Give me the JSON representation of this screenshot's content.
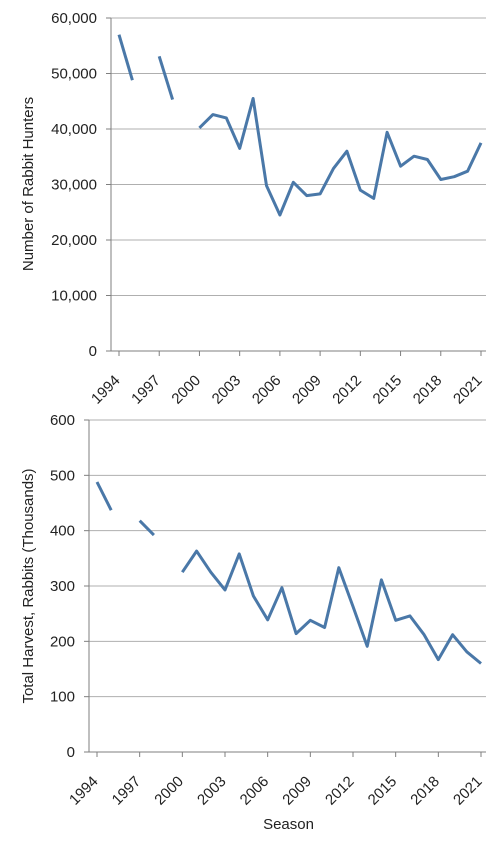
{
  "colors": {
    "series": "#4A78A8",
    "grid": "#AFAFAF",
    "axis": "#7F7F7F"
  },
  "chart_data": [
    {
      "type": "line",
      "title": "",
      "xlabel": "",
      "ylabel": "Number of Rabbit Hunters",
      "ylim": [
        0,
        60000
      ],
      "yticks": [
        0,
        10000,
        20000,
        30000,
        40000,
        50000,
        60000
      ],
      "ytick_labels": [
        "0",
        "10,000",
        "20,000",
        "30,000",
        "40,000",
        "50,000",
        "60,000"
      ],
      "xlim": [
        1994,
        2021
      ],
      "xtick_labels": [
        "1994",
        "1997",
        "2000",
        "2003",
        "2006",
        "2009",
        "2012",
        "2015",
        "2018",
        "2021"
      ],
      "grid": true,
      "series": [
        {
          "x": [
            1994,
            1995,
            1996,
            1997,
            1998,
            1999,
            2000,
            2001,
            2002,
            2003,
            2004,
            2005,
            2006,
            2007,
            2008,
            2009,
            2010,
            2011,
            2012,
            2013,
            2014,
            2015,
            2016,
            2017,
            2018,
            2019,
            2020,
            2021
          ],
          "values": [
            57000,
            48800,
            null,
            53100,
            45300,
            null,
            40200,
            42600,
            42000,
            36500,
            45500,
            29800,
            24500,
            30400,
            28000,
            28300,
            32900,
            36000,
            29000,
            27500,
            39400,
            33300,
            35100,
            34500,
            30900,
            31400,
            32400,
            37500
          ]
        }
      ]
    },
    {
      "type": "line",
      "title": "",
      "xlabel": "Season",
      "ylabel": "Total Harvest, Rabbits (Thousands)",
      "ylim": [
        0,
        600
      ],
      "yticks": [
        0,
        100,
        200,
        300,
        400,
        500,
        600
      ],
      "ytick_labels": [
        "0",
        "100",
        "200",
        "300",
        "400",
        "500",
        "600"
      ],
      "xlim": [
        1994,
        2021
      ],
      "xtick_labels": [
        "1994",
        "1997",
        "2000",
        "2003",
        "2006",
        "2009",
        "2012",
        "2015",
        "2018",
        "2021"
      ],
      "grid": true,
      "series": [
        {
          "x": [
            1994,
            1995,
            1996,
            1997,
            1998,
            1999,
            2000,
            2001,
            2002,
            2003,
            2004,
            2005,
            2006,
            2007,
            2008,
            2009,
            2010,
            2011,
            2012,
            2013,
            2014,
            2015,
            2016,
            2017,
            2018,
            2019,
            2020,
            2021
          ],
          "values": [
            488,
            437,
            null,
            418,
            392,
            null,
            325,
            363,
            325,
            293,
            358,
            282,
            239,
            297,
            214,
            238,
            225,
            333,
            263,
            191,
            311,
            238,
            246,
            212,
            167,
            212,
            181,
            160
          ]
        }
      ]
    }
  ]
}
